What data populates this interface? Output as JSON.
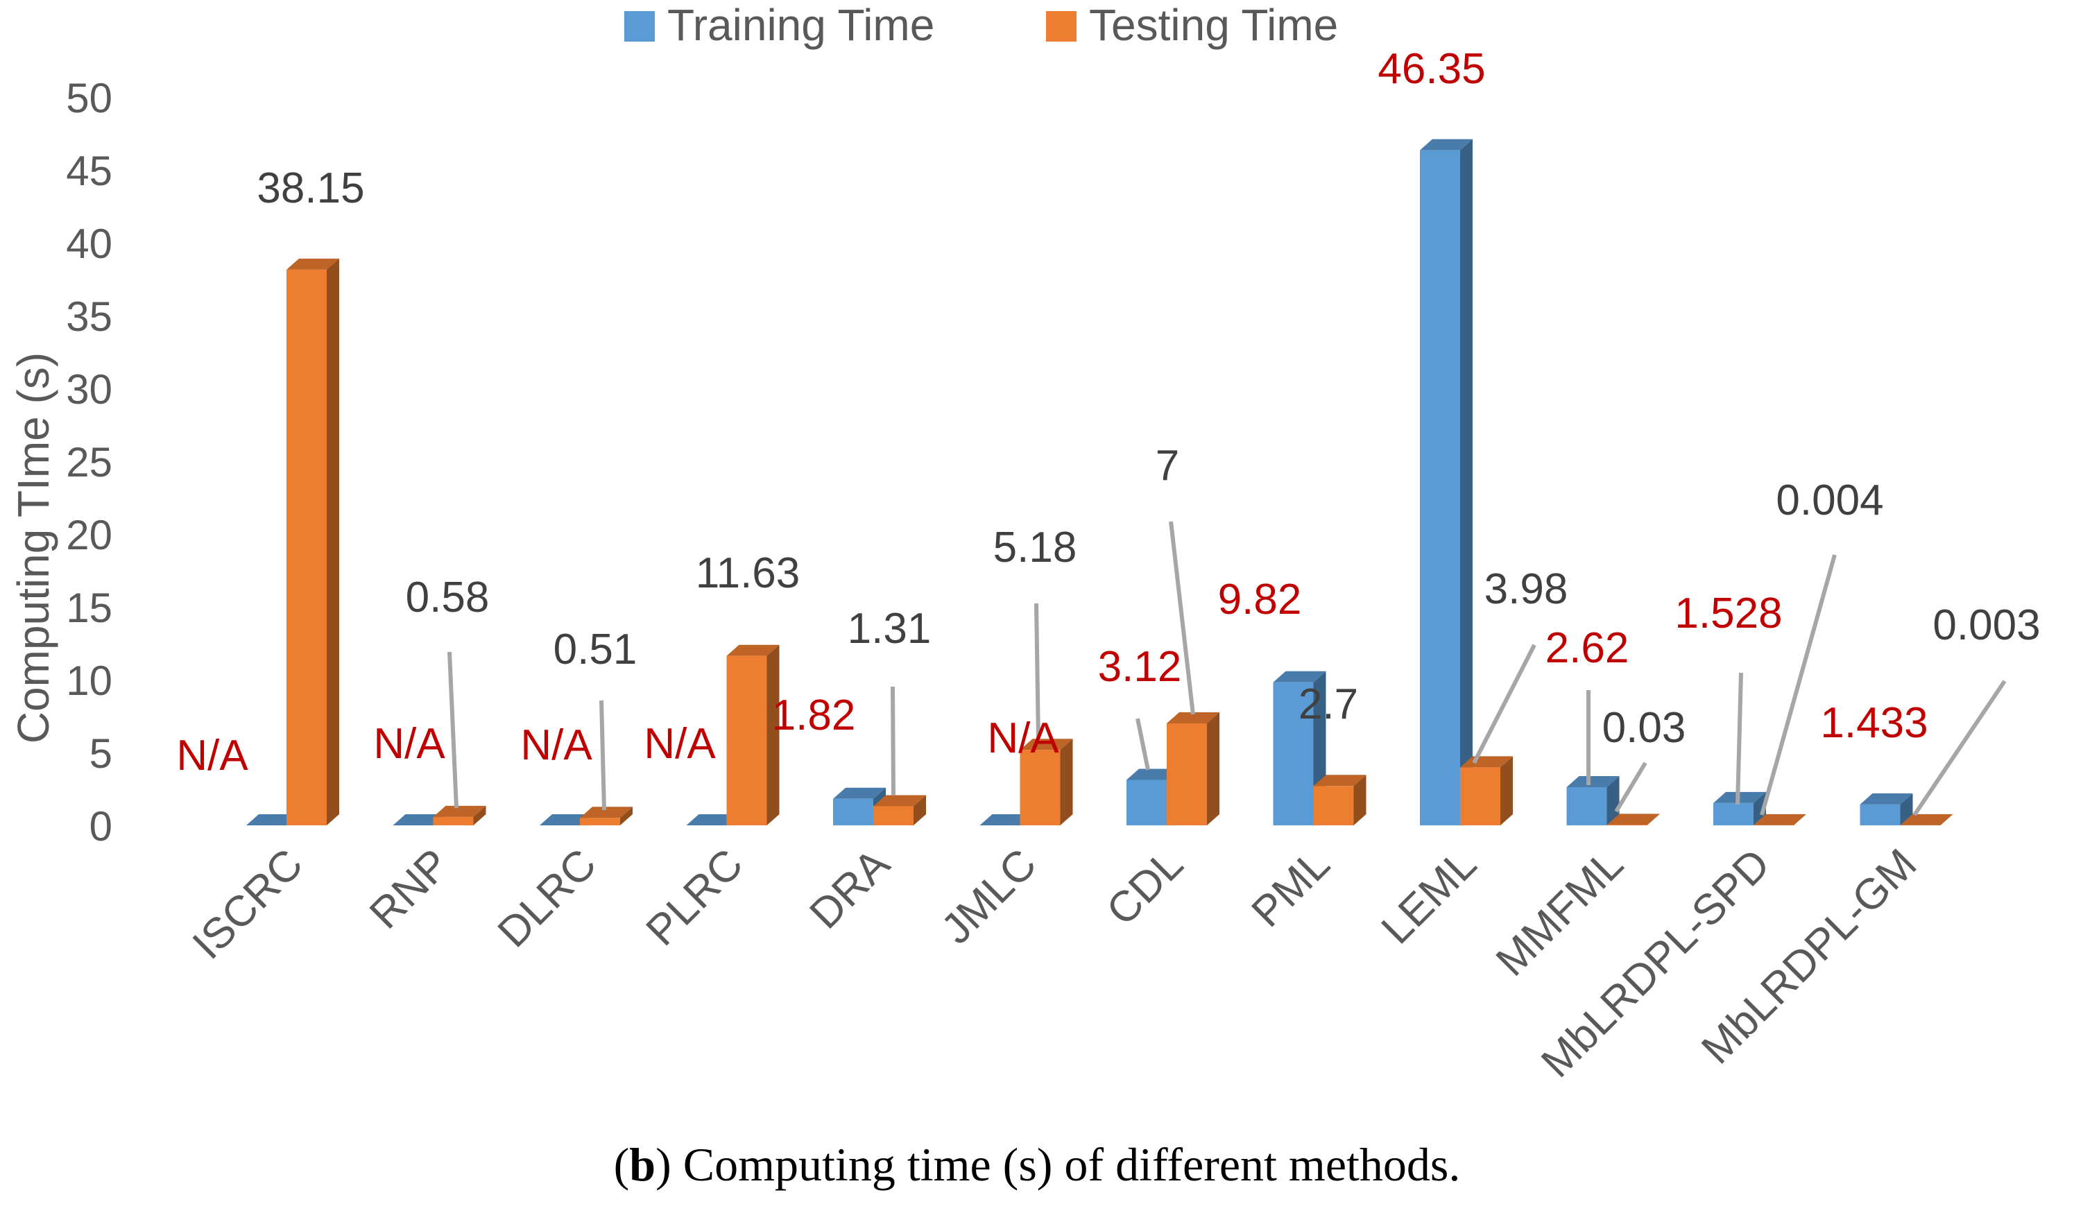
{
  "chart_data": {
    "type": "bar",
    "style": "3d-clustered",
    "title": "",
    "ylabel": "Computing TIme (s)",
    "xlabel": "",
    "ylim": [
      0,
      50
    ],
    "yticks": [
      0,
      5,
      10,
      15,
      20,
      25,
      30,
      35,
      40,
      45,
      50
    ],
    "legend_position": "top",
    "categories": [
      "ISCRC",
      "RNP",
      "DLRC",
      "PLRC",
      "DRA",
      "JMLC",
      "CDL",
      "PML",
      "LEML",
      "MMFML",
      "MbLRDPL-SPD",
      "MbLRDPL-GM"
    ],
    "series": [
      {
        "name": "Training Time",
        "color": "#5b9bd5",
        "values": [
          null,
          null,
          null,
          null,
          1.82,
          null,
          3.12,
          9.82,
          46.35,
          2.62,
          1.528,
          1.433
        ],
        "labels": [
          "N/A",
          "N/A",
          "N/A",
          "N/A",
          "1.82",
          "N/A",
          "3.12",
          "9.82",
          "46.35",
          "2.62",
          "1.528",
          "1.433"
        ],
        "label_color": "#c00000"
      },
      {
        "name": "Testing Time",
        "color": "#ed7d31",
        "values": [
          38.15,
          0.58,
          0.51,
          11.63,
          1.31,
          5.18,
          7,
          2.7,
          3.98,
          0.03,
          0.004,
          0.003
        ],
        "labels": [
          "38.15",
          "0.58",
          "0.51",
          "11.63",
          "1.31",
          "5.18",
          "7",
          "2.7",
          "3.98",
          "0.03",
          "0.004",
          "0.003"
        ],
        "label_color": "#404040"
      }
    ]
  },
  "caption": {
    "bold": "b",
    "text": "Computing time (s) of different methods."
  }
}
